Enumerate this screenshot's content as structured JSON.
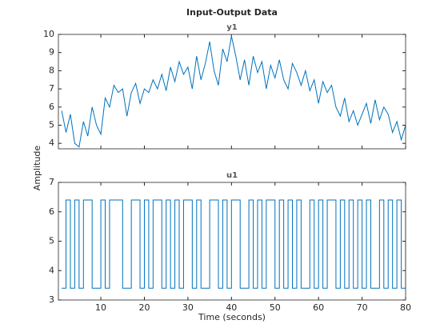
{
  "figure": {
    "title": "Input-Output Data",
    "xlabel": "Time (seconds)",
    "ylabel": "Amplitude"
  },
  "chart_data": [
    {
      "type": "line",
      "title": "y1",
      "color": "#0072bd",
      "grid": false,
      "step": false,
      "x": [
        1,
        2,
        3,
        4,
        5,
        6,
        7,
        8,
        9,
        10,
        11,
        12,
        13,
        14,
        15,
        16,
        17,
        18,
        19,
        20,
        21,
        22,
        23,
        24,
        25,
        26,
        27,
        28,
        29,
        30,
        31,
        32,
        33,
        34,
        35,
        36,
        37,
        38,
        39,
        40,
        41,
        42,
        43,
        44,
        45,
        46,
        47,
        48,
        49,
        50,
        51,
        52,
        53,
        54,
        55,
        56,
        57,
        58,
        59,
        60,
        61,
        62,
        63,
        64,
        65,
        66,
        67,
        68,
        69,
        70,
        71,
        72,
        73,
        74,
        75,
        76,
        77,
        78,
        79,
        80
      ],
      "series": [
        {
          "name": "y1",
          "color": "#0072bd",
          "values": [
            5.8,
            4.6,
            5.6,
            4.0,
            3.8,
            5.2,
            4.4,
            6.0,
            5.0,
            4.5,
            6.5,
            6.0,
            7.2,
            6.8,
            7.0,
            5.5,
            6.8,
            7.3,
            6.2,
            7.0,
            6.8,
            7.5,
            7.0,
            7.8,
            6.9,
            8.2,
            7.4,
            8.5,
            7.8,
            8.2,
            7.0,
            8.8,
            7.5,
            8.4,
            9.6,
            8.0,
            7.2,
            9.2,
            8.5,
            9.9,
            8.8,
            7.5,
            8.6,
            7.2,
            8.8,
            7.9,
            8.5,
            7.0,
            8.3,
            7.6,
            8.6,
            7.5,
            7.0,
            8.4,
            7.9,
            7.2,
            8.0,
            6.9,
            7.5,
            6.2,
            7.4,
            6.8,
            7.2,
            6.0,
            5.5,
            6.5,
            5.2,
            5.8,
            5.0,
            5.6,
            6.2,
            5.1,
            6.4,
            5.3,
            6.0,
            5.6,
            4.6,
            5.2,
            4.2,
            5.0
          ]
        }
      ],
      "xlim": [
        0.25,
        80
      ],
      "xticks": [
        10,
        20,
        30,
        40,
        50,
        60,
        70,
        80
      ],
      "show_xtick_labels": false,
      "ylim": [
        3.7,
        10
      ],
      "yticks": [
        4,
        5,
        6,
        7,
        8,
        9,
        10
      ]
    },
    {
      "type": "line",
      "title": "u1",
      "color": "#0072bd",
      "grid": false,
      "step": true,
      "x": [
        1,
        2,
        3,
        4,
        5,
        6,
        7,
        8,
        9,
        10,
        11,
        12,
        13,
        14,
        15,
        16,
        17,
        18,
        19,
        20,
        21,
        22,
        23,
        24,
        25,
        26,
        27,
        28,
        29,
        30,
        31,
        32,
        33,
        34,
        35,
        36,
        37,
        38,
        39,
        40,
        41,
        42,
        43,
        44,
        45,
        46,
        47,
        48,
        49,
        50,
        51,
        52,
        53,
        54,
        55,
        56,
        57,
        58,
        59,
        60,
        61,
        62,
        63,
        64,
        65,
        66,
        67,
        68,
        69,
        70,
        71,
        72,
        73,
        74,
        75,
        76,
        77,
        78,
        79,
        80
      ],
      "series": [
        {
          "name": "u1",
          "color": "#0072bd",
          "values": [
            3.4,
            6.4,
            3.4,
            6.4,
            3.4,
            6.4,
            6.4,
            3.4,
            3.4,
            6.4,
            3.4,
            6.4,
            6.4,
            6.4,
            3.4,
            3.4,
            6.4,
            6.4,
            3.4,
            6.4,
            3.4,
            6.4,
            6.4,
            3.4,
            6.4,
            3.4,
            6.4,
            3.4,
            6.4,
            6.4,
            3.4,
            6.4,
            3.4,
            3.4,
            6.4,
            6.4,
            3.4,
            6.4,
            3.4,
            6.4,
            6.4,
            3.4,
            3.4,
            6.4,
            3.4,
            6.4,
            3.4,
            6.4,
            6.4,
            3.4,
            6.4,
            3.4,
            6.4,
            3.4,
            6.4,
            3.4,
            3.4,
            6.4,
            3.4,
            6.4,
            3.4,
            6.4,
            6.4,
            3.4,
            6.4,
            3.4,
            6.4,
            3.4,
            6.4,
            3.4,
            6.4,
            3.4,
            3.4,
            6.4,
            3.4,
            6.4,
            3.4,
            6.4,
            3.4,
            6.4
          ]
        }
      ],
      "xlim": [
        0.25,
        80
      ],
      "xticks": [
        10,
        20,
        30,
        40,
        50,
        60,
        70,
        80
      ],
      "show_xtick_labels": true,
      "ylim": [
        3,
        7
      ],
      "yticks": [
        3,
        4,
        5,
        6,
        7
      ]
    }
  ]
}
